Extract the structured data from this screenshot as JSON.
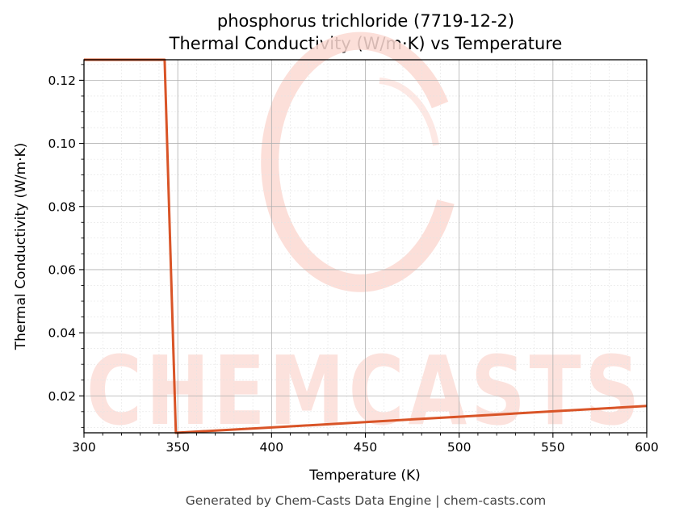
{
  "chart_data": {
    "type": "line",
    "title": "phosphorus trichloride (7719-12-2)",
    "subtitle": "Thermal Conductivity (W/m·K) vs Temperature",
    "xlabel": "Temperature (K)",
    "ylabel": "Thermal Conductivity (W/m·K)",
    "xlim": [
      300,
      600
    ],
    "ylim": [
      0.0083,
      0.1265
    ],
    "xticks": [
      300,
      350,
      400,
      450,
      500,
      550,
      600
    ],
    "xtick_labels": [
      "300",
      "350",
      "400",
      "450",
      "500",
      "550",
      "600"
    ],
    "yticks": [
      0.02,
      0.04,
      0.06,
      0.08,
      0.1,
      0.12
    ],
    "ytick_labels": [
      "0.02",
      "0.04",
      "0.06",
      "0.08",
      "0.10",
      "0.12"
    ],
    "grid": true,
    "line_color": "#d95427",
    "series": [
      {
        "x": [
          300,
          343,
          349,
          400,
          450,
          500,
          550,
          600
        ],
        "y": [
          0.1265,
          0.1265,
          0.0083,
          0.01,
          0.0117,
          0.0134,
          0.0151,
          0.0168
        ]
      }
    ]
  },
  "watermark": {
    "text": "CHEMCASTS",
    "color": "#fcd9d2"
  },
  "footer": "Generated by Chem-Casts Data Engine | chem-casts.com"
}
